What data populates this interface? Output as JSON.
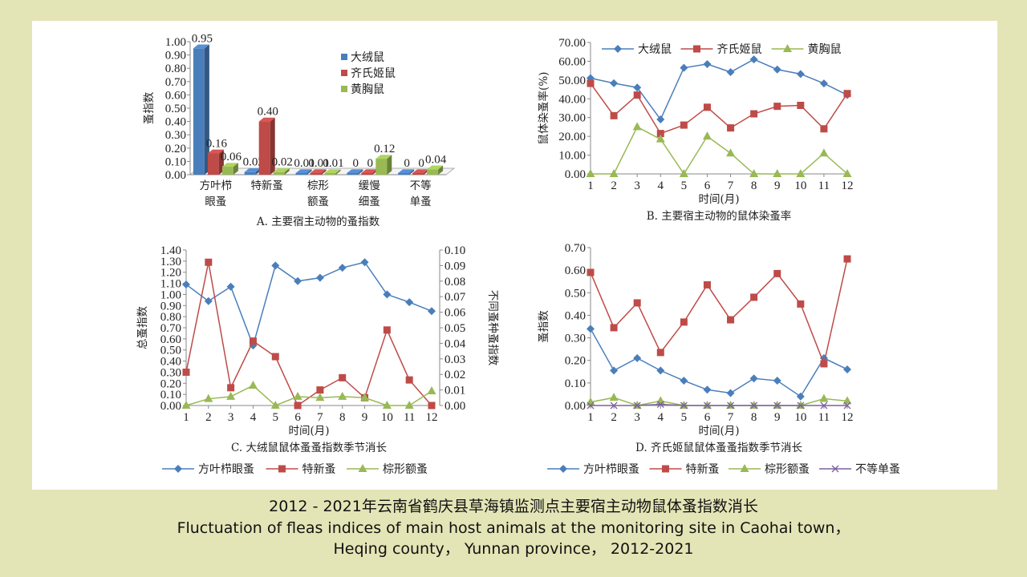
{
  "background_color": "#e3e5b6",
  "caption": {
    "zh": "2012 - 2021年云南省鹤庆县草海镇监测点主要宿主动物鼠体蚤指数消长",
    "en_line1": "Fluctuation of fleas indices of main host animals at the monitoring site in Caohai town，",
    "en_line2": "Heqing county， Yunnan province， 2012-2021"
  },
  "chart_data": [
    {
      "id": "A",
      "type": "bar",
      "title": "A. 主要宿主动物的蚤指数",
      "xlabel": "",
      "ylabel": "蚤指数",
      "ylim": [
        0,
        1.0
      ],
      "ytick_step": 0.1,
      "ytick_decimals": 2,
      "categories": [
        "方叶栉眼蚤",
        "特新蚤",
        "棕形额蚤",
        "缓慢细蚤",
        "不等单蚤"
      ],
      "category_lines": [
        [
          "方叶栉",
          "眼蚤"
        ],
        [
          "特新蚤"
        ],
        [
          "棕形",
          "额蚤"
        ],
        [
          "缓慢",
          "细蚤"
        ],
        [
          "不等",
          "单蚤"
        ]
      ],
      "series": [
        {
          "name": "大绒鼠",
          "color": "#4a7ebb",
          "values": [
            0.95,
            0.02,
            0.01,
            0,
            0
          ],
          "labels": [
            "0.95",
            "0.02",
            "0.01",
            "0",
            "0"
          ]
        },
        {
          "name": "齐氏姬鼠",
          "color": "#be4b48",
          "values": [
            0.16,
            0.4,
            0.01,
            0,
            0
          ],
          "labels": [
            "0.16",
            "0.40",
            "0.01",
            "0",
            "0"
          ]
        },
        {
          "name": "黄胸鼠",
          "color": "#98b954",
          "values": [
            0.06,
            0.02,
            0.01,
            0.12,
            0.04
          ],
          "labels": [
            "0.06",
            "0.02",
            "0.01",
            "0.12",
            "0.04"
          ]
        }
      ],
      "legend": "top-right",
      "style": "3d-clustered"
    },
    {
      "id": "B",
      "type": "line",
      "title": "B. 主要宿主动物的鼠体染蚤率",
      "xlabel": "时间(月)",
      "ylabel": "鼠体染蚤率(%)",
      "x": [
        1,
        2,
        3,
        4,
        5,
        6,
        7,
        8,
        9,
        10,
        11,
        12
      ],
      "ylim": [
        0,
        70
      ],
      "ytick_step": 10,
      "ytick_decimals": 2,
      "series": [
        {
          "name": "大绒鼠",
          "color": "#4a7ebb",
          "marker": "diamond",
          "values": [
            51,
            48.3,
            46,
            29,
            56.5,
            58.5,
            54.2,
            61,
            55.6,
            53.2,
            48.2,
            42
          ]
        },
        {
          "name": "齐氏姬鼠",
          "color": "#be4b48",
          "marker": "square",
          "values": [
            48.2,
            31,
            42,
            21.5,
            26,
            35.5,
            24.5,
            32,
            36,
            36.5,
            24,
            42.8
          ]
        },
        {
          "name": "黄胸鼠",
          "color": "#98b954",
          "marker": "triangle",
          "values": [
            0,
            0,
            25,
            18.5,
            0,
            20,
            11,
            0,
            0,
            0,
            11,
            0
          ]
        }
      ],
      "legend": "top"
    },
    {
      "id": "C",
      "type": "line",
      "title": "C. 大绒鼠鼠体蚤蚤指数季节消长",
      "xlabel": "时间(月)",
      "ylabel": "总蚤指数",
      "y2label": "不同蚤种蚤指数",
      "x": [
        1,
        2,
        3,
        4,
        5,
        6,
        7,
        8,
        9,
        10,
        11,
        12
      ],
      "ylim": [
        0,
        1.4
      ],
      "ytick_step": 0.1,
      "ytick_decimals": 2,
      "y2lim": [
        0,
        0.1
      ],
      "y2tick_step": 0.01,
      "y2tick_decimals": 2,
      "series": [
        {
          "name": "方叶栉眼蚤",
          "color": "#4a7ebb",
          "marker": "diamond",
          "axis": "left",
          "values": [
            1.09,
            0.94,
            1.07,
            0.54,
            1.26,
            1.12,
            1.15,
            1.24,
            1.29,
            1.0,
            0.93,
            0.85
          ]
        },
        {
          "name": "特新蚤",
          "color": "#be4b48",
          "marker": "square",
          "axis": "left",
          "values": [
            0.3,
            1.29,
            0.16,
            0.58,
            0.44,
            0.0,
            0.14,
            0.25,
            0.07,
            0.68,
            0.23,
            0.0
          ]
        },
        {
          "name": "棕形额蚤",
          "color": "#98b954",
          "marker": "triangle",
          "axis": "left",
          "values": [
            0.0,
            0.06,
            0.08,
            0.18,
            0.0,
            0.08,
            0.07,
            0.08,
            0.07,
            0.0,
            0.0,
            0.13
          ]
        }
      ],
      "legend": "bottom"
    },
    {
      "id": "D",
      "type": "line",
      "title": "D. 齐氏姬鼠鼠体蚤蚤指数季节消长",
      "xlabel": "时间(月)",
      "ylabel": "蚤指数",
      "x": [
        1,
        2,
        3,
        4,
        5,
        6,
        7,
        8,
        9,
        10,
        11,
        12
      ],
      "ylim": [
        0,
        0.7
      ],
      "ytick_step": 0.1,
      "ytick_decimals": 2,
      "series": [
        {
          "name": "方叶栉眼蚤",
          "color": "#4a7ebb",
          "marker": "diamond",
          "values": [
            0.34,
            0.155,
            0.21,
            0.155,
            0.11,
            0.07,
            0.055,
            0.12,
            0.11,
            0.04,
            0.21,
            0.16
          ]
        },
        {
          "name": "特新蚤",
          "color": "#be4b48",
          "marker": "square",
          "values": [
            0.59,
            0.345,
            0.455,
            0.235,
            0.37,
            0.535,
            0.38,
            0.48,
            0.585,
            0.45,
            0.185,
            0.65
          ]
        },
        {
          "name": "棕形额蚤",
          "color": "#98b954",
          "marker": "triangle",
          "values": [
            0.015,
            0.035,
            0.0,
            0.02,
            0.0,
            0.0,
            0.0,
            0.0,
            0.0,
            0.0,
            0.03,
            0.02
          ]
        },
        {
          "name": "不等单蚤",
          "color": "#7d60a0",
          "marker": "x",
          "values": [
            0,
            0,
            0,
            0.005,
            0,
            0,
            0,
            0,
            0,
            0,
            0,
            0
          ]
        }
      ],
      "legend": "bottom"
    }
  ]
}
